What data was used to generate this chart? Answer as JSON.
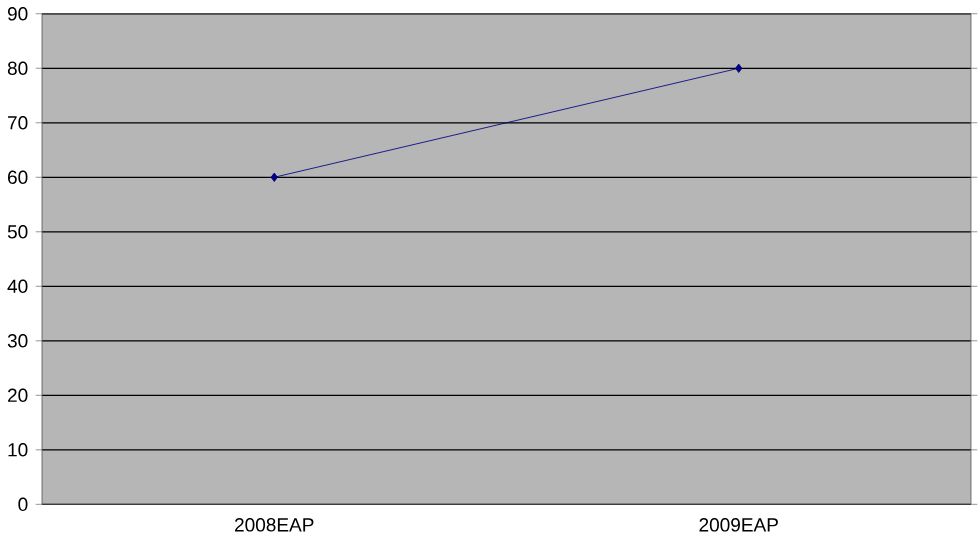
{
  "chart_data": {
    "type": "line",
    "categories": [
      "2008EAP",
      "2009EAP"
    ],
    "series": [
      {
        "color": "#000080",
        "values": [
          60,
          80
        ]
      }
    ],
    "ylim": [
      0,
      90
    ],
    "yticks": [
      0,
      10,
      20,
      30,
      40,
      50,
      60,
      70,
      80,
      90
    ],
    "grid": "y",
    "marker": "diamond",
    "line_style": "solid"
  }
}
